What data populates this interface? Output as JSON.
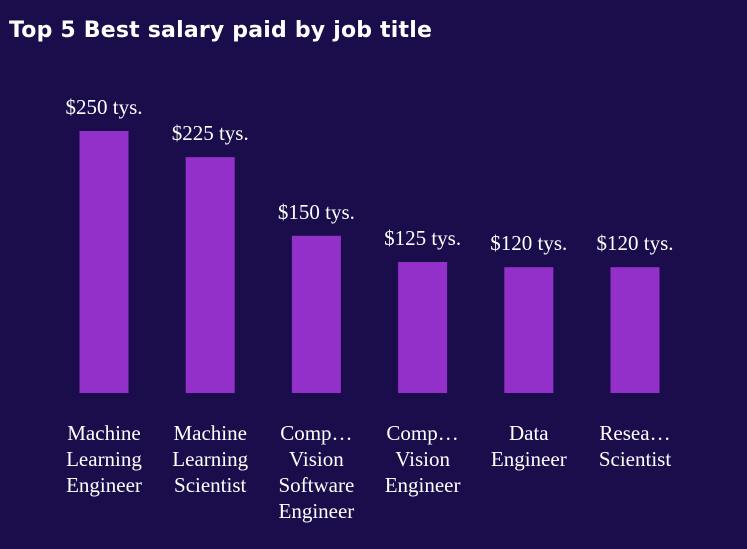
{
  "title": "Top 5 Best salary paid by job title",
  "colors": {
    "background": "#1b0d4b",
    "bar": "#9230c9",
    "text": "#ffffff"
  },
  "chart_data": {
    "type": "bar",
    "title": "Top 5 Best salary paid by job title",
    "xlabel": "",
    "ylabel": "",
    "categories": [
      "Machine Learning Engineer",
      "Machine Learning Scientist",
      "Comp… Vision Software Engineer",
      "Comp… Vision Engineer",
      "Data Engineer",
      "Resea… Scientist"
    ],
    "category_label_lines": [
      [
        "Machine",
        "Learning",
        "Engineer"
      ],
      [
        "Machine",
        "Learning",
        "Scientist"
      ],
      [
        "Comp…",
        "Vision",
        "Software",
        "Engineer"
      ],
      [
        "Comp…",
        "Vision",
        "Engineer"
      ],
      [
        "Data",
        "Engineer"
      ],
      [
        "Resea…",
        "Scientist"
      ]
    ],
    "values": [
      250,
      225,
      150,
      125,
      120,
      120
    ],
    "data_labels": [
      "$250 tys.",
      "$225 tys.",
      "$150 tys.",
      "$125 tys.",
      "$120 tys.",
      "$120 tys."
    ],
    "ylim": [
      0,
      250
    ],
    "grid": false,
    "legend": "none"
  }
}
